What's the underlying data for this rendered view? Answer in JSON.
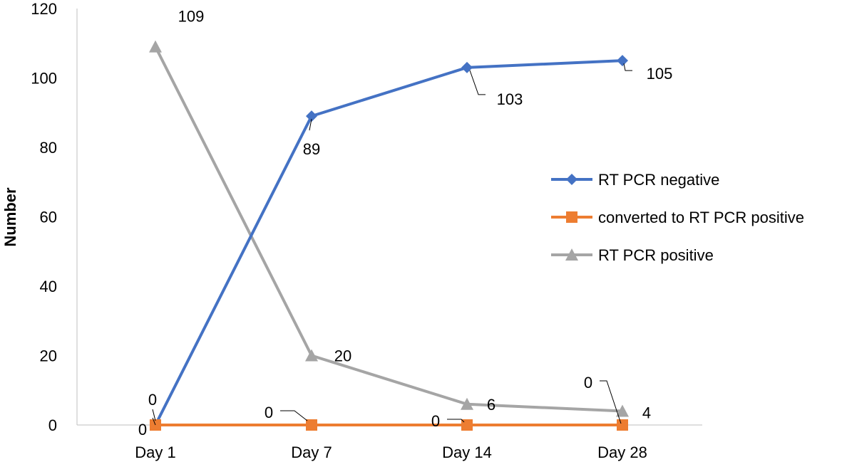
{
  "chart_data": {
    "type": "line",
    "title": "",
    "xlabel": "",
    "ylabel": "Number",
    "categories": [
      "Day 1",
      "Day 7",
      "Day 14",
      "Day 28"
    ],
    "ylim": [
      0,
      120
    ],
    "yticks": [
      0,
      20,
      40,
      60,
      80,
      100,
      120
    ],
    "legend_position": "right",
    "grid": false,
    "series": [
      {
        "name": "RT PCR negative",
        "values": [
          0,
          89,
          103,
          105
        ],
        "color": "#4472C4",
        "marker": "diamond",
        "labels": [
          "0",
          "89",
          "103",
          "105"
        ]
      },
      {
        "name": "converted to RT PCR positive",
        "values": [
          0,
          0,
          0,
          0
        ],
        "color": "#ED7D31",
        "marker": "square",
        "labels": [
          "0",
          "0",
          "0",
          "0"
        ]
      },
      {
        "name": "RT PCR positive",
        "values": [
          109,
          20,
          6,
          4
        ],
        "color": "#A5A5A5",
        "marker": "triangle",
        "labels": [
          "109",
          "20",
          "6",
          "4"
        ]
      }
    ]
  }
}
